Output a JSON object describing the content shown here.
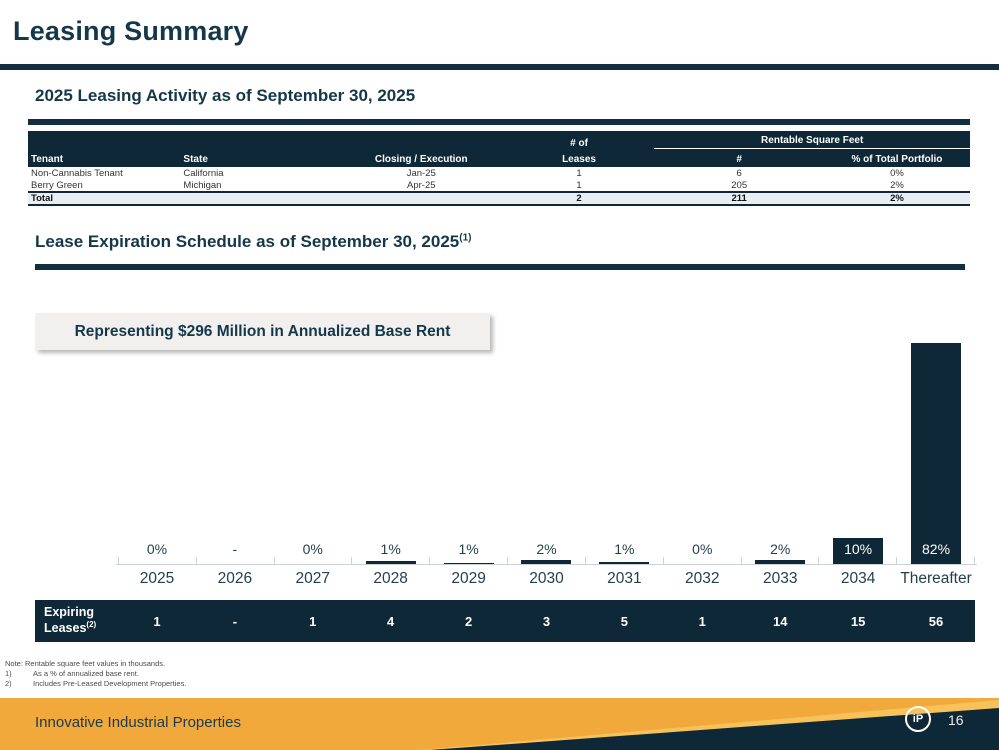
{
  "page": {
    "title": "Leasing Summary",
    "footer": {
      "company": "Innovative Industrial Properties",
      "page_number": "16",
      "logo_text": "iP"
    },
    "colors": {
      "navy": "#0e2837",
      "orange": "#f2a93c",
      "callout_bg": "#f1f0ee",
      "total_row_bg": "#e9eef3"
    }
  },
  "leasing_activity": {
    "heading": "2025 Leasing Activity as of September 30, 2025",
    "table": {
      "group_leases": "# of",
      "group_rsf": "Rentable Square Feet",
      "columns": {
        "tenant": "Tenant",
        "state": "State",
        "closing": "Closing / Execution",
        "leases": "Leases",
        "number": "#",
        "pct": "% of Total Portfolio"
      },
      "rows": [
        [
          "Non-Cannabis Tenant",
          "California",
          "Jan-25",
          "1",
          "6",
          "0%"
        ],
        [
          "Berry Green",
          "Michigan",
          "Apr-25",
          "1",
          "205",
          "2%"
        ]
      ],
      "total": [
        "Total",
        "",
        "",
        "2",
        "211",
        "2%"
      ]
    }
  },
  "expiration": {
    "heading": "Lease Expiration Schedule as of September 30, 2025",
    "heading_sup": "(1)",
    "callout": "Representing $296 Million in Annualized Base Rent",
    "expiring_label_line1": "Expiring",
    "expiring_label_line2": "Leases",
    "expiring_label_sup": "(2)"
  },
  "chart_data": {
    "type": "bar",
    "title": "Lease Expiration Schedule as of September 30, 2025",
    "annotation": "Representing $296 Million in Annualized Base Rent",
    "categories": [
      "2025",
      "2026",
      "2027",
      "2028",
      "2029",
      "2030",
      "2031",
      "2032",
      "2033",
      "2034",
      "Thereafter"
    ],
    "values": [
      0,
      null,
      0,
      1.4,
      0.9,
      2,
      1.2,
      0,
      2,
      10,
      82
    ],
    "labels": [
      "0%",
      "-",
      "0%",
      "1%",
      "1%",
      "2%",
      "1%",
      "0%",
      "2%",
      "10%",
      "82%"
    ],
    "expiring_leases": [
      "1",
      "-",
      "1",
      "4",
      "2",
      "3",
      "5",
      "1",
      "14",
      "15",
      "56"
    ],
    "ylabel": "% of Annualized Base Rent",
    "ylim": [
      0,
      85
    ],
    "bar_color": "#0e2837",
    "grid": false,
    "legend": false
  },
  "notes": {
    "note": "Note: Rentable square feet values in thousands.",
    "items": [
      {
        "num": "1)",
        "text": "As a % of annualized base rent."
      },
      {
        "num": "2)",
        "text": "Includes Pre-Leased Development Properties."
      }
    ]
  }
}
